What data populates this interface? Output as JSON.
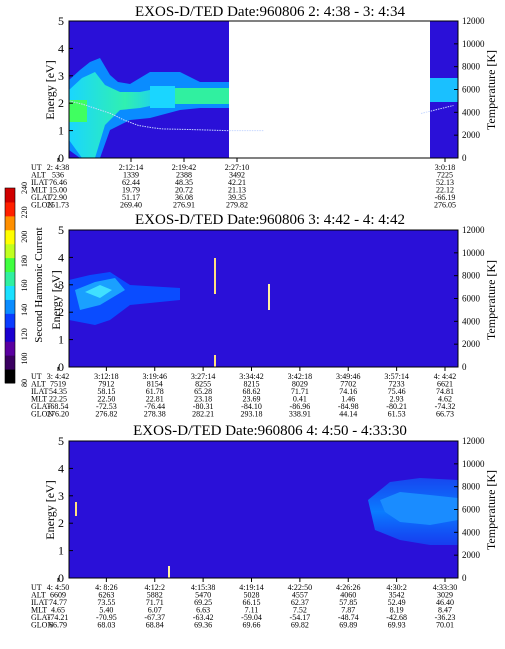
{
  "colorbar": {
    "label": "Second Harmonic Current",
    "ticks": [
      "80",
      "100",
      "120",
      "140",
      "160",
      "180",
      "200",
      "220",
      "240"
    ],
    "colors": [
      "#000000",
      "#3a0060",
      "#5a00a0",
      "#1a00d0",
      "#0a3cff",
      "#0a8cff",
      "#1ae0ff",
      "#30f0a0",
      "#40ff40",
      "#c0ff20",
      "#ffff00",
      "#ff9000",
      "#ff2000",
      "#d00000"
    ]
  },
  "chart_data": [
    {
      "type": "heatmap",
      "title": "EXOS-D/TED   Date:960806  2: 4:38 - 3: 4:34",
      "ylabel": "Energy [eV]",
      "y2label": "Temperature [K]",
      "ylim": [
        0,
        5
      ],
      "y2lim": [
        0,
        12000
      ],
      "yticks": [
        "0",
        "1",
        "2",
        "3",
        "4",
        "5"
      ],
      "y2ticks": [
        "0",
        "2000",
        "4000",
        "6000",
        "8000",
        "10000",
        "12000"
      ],
      "data_gap": [
        "2:27:10",
        "3:0:18"
      ],
      "temperature_trace": [
        [
          0.0,
          5000
        ],
        [
          0.15,
          4700
        ],
        [
          0.3,
          4300
        ],
        [
          0.45,
          3900
        ],
        [
          0.6,
          3300
        ],
        [
          0.75,
          2850
        ],
        [
          0.9,
          2650
        ],
        [
          1.0,
          2550
        ],
        [
          1.3,
          2500
        ],
        [
          1.7,
          2400
        ],
        [
          2.1,
          2400
        ],
        [
          3.8,
          3900
        ],
        [
          4.0,
          4300
        ],
        [
          4.15,
          4600
        ]
      ],
      "orbit_labels": [
        "UT",
        "ALT",
        "ILAT",
        "MLT",
        "GLAT",
        "GLON"
      ],
      "orbit_table": [
        [
          "2: 4:38",
          "536",
          "76.46",
          "15.00",
          "72.90",
          "251.73"
        ],
        [
          "2:12:14",
          "1339",
          "62.44",
          "19.79",
          "51.17",
          "269.40"
        ],
        [
          "2:19:42",
          "2388",
          "48.35",
          "20.72",
          "36.08",
          "276.91"
        ],
        [
          "2:27:10",
          "3492",
          "42.21",
          "21.13",
          "39.35",
          "279.82"
        ],
        [
          "3:0:18",
          "7225",
          "52.13",
          "22.12",
          "-66.19",
          "276.05"
        ]
      ]
    },
    {
      "type": "heatmap",
      "title": "EXOS-D/TED   Date:960806  3: 4:42 - 4: 4:42",
      "ylabel": "Energy [eV]",
      "y2label": "Temperature [K]",
      "ylim": [
        0,
        5
      ],
      "y2lim": [
        0,
        12000
      ],
      "yticks": [
        "0",
        "1",
        "2",
        "3",
        "4",
        "5"
      ],
      "y2ticks": [
        "0",
        "2000",
        "4000",
        "6000",
        "8000",
        "10000",
        "12000"
      ],
      "orbit_labels": [
        "UT",
        "ALT",
        "ILAT",
        "MLT",
        "GLAT",
        "GLON"
      ],
      "orbit_table": [
        [
          "3: 4:42",
          "7519",
          "54.35",
          "22.25",
          "-68.54",
          "276.20"
        ],
        [
          "3:12:18",
          "7912",
          "58.15",
          "22.50",
          "-72.53",
          "276.82"
        ],
        [
          "3:19:46",
          "8154",
          "61.78",
          "22.81",
          "-76.44",
          "278.38"
        ],
        [
          "3:27:14",
          "8255",
          "65.28",
          "23.18",
          "-80.31",
          "282.21"
        ],
        [
          "3:34:42",
          "8215",
          "68.62",
          "23.69",
          "-84.10",
          "293.18"
        ],
        [
          "3:42:18",
          "8029",
          "71.71",
          "0.41",
          "-86.96",
          "338.91"
        ],
        [
          "3:49:46",
          "7702",
          "74.16",
          "1.46",
          "-84.98",
          "44.14"
        ],
        [
          "3:57:14",
          "7233",
          "75.46",
          "2.93",
          "-80.21",
          "61.53"
        ],
        [
          "4: 4:42",
          "6621",
          "74.81",
          "4.62",
          "-74.32",
          "66.73"
        ]
      ]
    },
    {
      "type": "heatmap",
      "title": "EXOS-D/TED   Date:960806  4: 4:50 - 4:33:30",
      "ylabel": "Energy [eV]",
      "y2label": "Temperature [K]",
      "ylim": [
        0,
        5
      ],
      "y2lim": [
        0,
        12000
      ],
      "yticks": [
        "0",
        "1",
        "2",
        "3",
        "4",
        "5"
      ],
      "y2ticks": [
        "0",
        "2000",
        "4000",
        "6000",
        "8000",
        "10000",
        "12000"
      ],
      "orbit_labels": [
        "UT",
        "ALT",
        "ILAT",
        "MLT",
        "GLAT",
        "GLON"
      ],
      "orbit_table": [
        [
          "4: 4:50",
          "6609",
          "74.77",
          "4.65",
          "-74.21",
          "66.79"
        ],
        [
          "4: 8:26",
          "6263",
          "73.55",
          "5.40",
          "-70.95",
          "68.03"
        ],
        [
          "4:12:2",
          "5882",
          "71.71",
          "6.07",
          "-67.37",
          "68.84"
        ],
        [
          "4:15:38",
          "5470",
          "69.25",
          "6.63",
          "-63.42",
          "69.36"
        ],
        [
          "4:19:14",
          "5028",
          "66.15",
          "7.11",
          "-59.04",
          "69.66"
        ],
        [
          "4:22:50",
          "4557",
          "62.37",
          "7.52",
          "-54.17",
          "69.82"
        ],
        [
          "4:26:26",
          "4060",
          "57.85",
          "7.87",
          "-48.74",
          "69.89"
        ],
        [
          "4:30:2",
          "3542",
          "52.49",
          "8.19",
          "-42.68",
          "69.93"
        ],
        [
          "4:33:30",
          "3029",
          "46.40",
          "8.47",
          "-36.23",
          "70.01"
        ]
      ]
    }
  ]
}
